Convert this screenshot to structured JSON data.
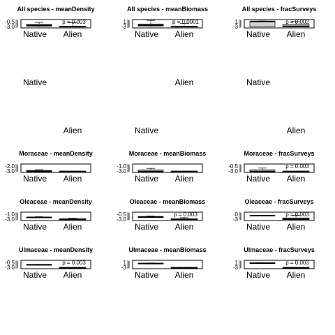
{
  "chart_data": [
    {
      "type": "box",
      "title": "All species - meanDensity",
      "categories": [
        "Native",
        "Alien"
      ],
      "yticks": [
        "-0.5",
        "-3.0"
      ],
      "p_value": "p = 0.003",
      "boxes": [
        {
          "q1": -2.4,
          "median": -1.7,
          "q3": -0.9,
          "whisker_low": -3.0,
          "whisker_high": 0.8
        },
        {
          "q1": -2.9,
          "median": -2.7,
          "q3": -2.3,
          "whisker_low": -3.0,
          "whisker_high": 0.5
        }
      ]
    },
    {
      "type": "box",
      "title": "All species - meanBiomass",
      "categories": [
        "Native",
        "Alien"
      ],
      "yticks": [
        "1",
        "-3"
      ],
      "p_value": "p = 0.0001",
      "boxes": [
        {
          "q1": -2.2,
          "median": -1.5,
          "q3": -0.5,
          "whisker_low": -3.0,
          "whisker_high": 2.5
        },
        {
          "q1": -2.9,
          "median": -2.7,
          "q3": -2.4,
          "whisker_low": -3.0,
          "whisker_high": 0.0
        }
      ]
    },
    {
      "type": "box",
      "title": "All species - fracSurveys",
      "categories": [
        "Native",
        "Alien"
      ],
      "yticks": [
        "1",
        "-3"
      ],
      "p_value": "p = 0.002",
      "boxes": [
        {
          "q1": -3.0,
          "median": 1.6,
          "q3": 1.8,
          "whisker_low": -3.0,
          "whisker_high": 2.0
        },
        {
          "q1": -2.9,
          "median": -2.5,
          "q3": -1.0,
          "whisker_low": -3.0,
          "whisker_high": 1.5
        }
      ]
    },
    {
      "type": "empty",
      "categories": [
        "Native",
        ""
      ],
      "yticks": [],
      "p_value": ""
    },
    {
      "type": "empty",
      "categories": [
        "",
        "Alien"
      ],
      "yticks": [],
      "p_value": ""
    },
    {
      "type": "empty",
      "categories": [
        "Native",
        ""
      ],
      "yticks": [],
      "p_value": ""
    },
    {
      "type": "empty",
      "categories": [
        "",
        "Alien"
      ],
      "yticks": [],
      "p_value": ""
    },
    {
      "type": "empty",
      "categories": [
        "Native",
        ""
      ],
      "yticks": [],
      "p_value": ""
    },
    {
      "type": "empty",
      "categories": [
        "",
        "Alien"
      ],
      "yticks": [],
      "p_value": ""
    },
    {
      "type": "box",
      "title": "Moraceae - meanDensity",
      "categories": [
        "Native",
        "Alien"
      ],
      "yticks": [
        "-2.0",
        "-3.0"
      ],
      "p_value": "",
      "boxes": [
        {
          "q1": -3.0,
          "median": -3.0,
          "q3": -2.1,
          "whisker_low": -3.0,
          "whisker_high": -1.5
        },
        {
          "q1": -3.0,
          "median": -3.0,
          "q3": -2.95,
          "whisker_low": -3.0,
          "whisker_high": -2.95
        }
      ]
    },
    {
      "type": "box",
      "title": "Moraceae - meanBiomass",
      "categories": [
        "Native",
        "Alien"
      ],
      "yticks": [
        "-1.0",
        "-3.0"
      ],
      "p_value": "",
      "boxes": [
        {
          "q1": -3.0,
          "median": -3.0,
          "q3": -1.7,
          "whisker_low": -3.0,
          "whisker_high": -0.4
        },
        {
          "q1": -3.0,
          "median": -3.0,
          "q3": -2.95,
          "whisker_low": -3.0,
          "whisker_high": -2.95
        }
      ]
    },
    {
      "type": "box",
      "title": "Moraceae - fracSurveys",
      "categories": [
        "Native",
        "Alien"
      ],
      "yticks": [
        "-0.5",
        "-3.0"
      ],
      "p_value": "p = 0.003",
      "boxes": [
        {
          "q1": -3.0,
          "median": -3.0,
          "q3": -1.6,
          "whisker_low": -3.0,
          "whisker_high": -0.2
        },
        {
          "q1": -3.0,
          "median": -3.0,
          "q3": -2.95,
          "whisker_low": -3.0,
          "whisker_high": -2.95
        }
      ]
    },
    {
      "type": "box",
      "title": "Oleaceae - meanDensity",
      "categories": [
        "Native",
        "Alien"
      ],
      "yticks": [
        "-1.0",
        "-3.0"
      ],
      "p_value": "",
      "boxes": [
        {
          "q1": -1.5,
          "median": -1.2,
          "q3": -0.9,
          "whisker_low": -1.8,
          "whisker_high": -0.6
        },
        {
          "q1": -3.0,
          "median": -2.7,
          "q3": -2.5,
          "whisker_low": -3.0,
          "whisker_high": -1.8
        }
      ]
    },
    {
      "type": "box",
      "title": "Oleaceae - meanBiomass",
      "categories": [
        "Native",
        "Alien"
      ],
      "yticks": [
        "-0.5",
        "-3.0"
      ],
      "p_value": "p = 0.003",
      "boxes": [
        {
          "q1": -1.3,
          "median": -0.8,
          "q3": -0.4,
          "whisker_low": -1.8,
          "whisker_high": 0.0
        },
        {
          "q1": -3.0,
          "median": -2.7,
          "q3": -2.4,
          "whisker_low": -3.0,
          "whisker_high": -1.4
        }
      ]
    },
    {
      "type": "box",
      "title": "Oleaceae - fracSurveys",
      "categories": [
        "Native",
        "Alien"
      ],
      "yticks": [
        "0",
        "-3"
      ],
      "p_value": "p = 0.003",
      "boxes": [
        {
          "q1": 0.1,
          "median": 0.3,
          "q3": 0.5,
          "whisker_low": 0.0,
          "whisker_high": 0.6
        },
        {
          "q1": -2.9,
          "median": -2.6,
          "q3": -1.6,
          "whisker_low": -3.0,
          "whisker_high": 0.5
        }
      ]
    },
    {
      "type": "box",
      "title": "Ulmaceae - meanDensity",
      "categories": [
        "Native",
        "Alien"
      ],
      "yticks": [
        "-0.5",
        "-3.0"
      ],
      "p_value": "p = 0.003",
      "boxes": [
        {
          "q1": -0.7,
          "median": -0.5,
          "q3": -0.3,
          "whisker_low": -0.8,
          "whisker_high": -0.2
        },
        {
          "q1": -3.0,
          "median": -3.0,
          "q3": -2.95,
          "whisker_low": -3.0,
          "whisker_high": -2.95
        }
      ]
    },
    {
      "type": "box",
      "title": "Ulmaceae - meanBiomass",
      "categories": [
        "Native",
        "Alien"
      ],
      "yticks": [
        "1",
        "-3"
      ],
      "p_value": "",
      "boxes": [
        {
          "q1": 0.2,
          "median": 0.5,
          "q3": 0.8,
          "whisker_low": 0.0,
          "whisker_high": 1.0
        },
        {
          "q1": -3.0,
          "median": -3.0,
          "q3": -2.95,
          "whisker_low": -3.0,
          "whisker_high": -2.95
        }
      ]
    },
    {
      "type": "box",
      "title": "Ulmaceae - fracSurveys",
      "categories": [
        "Native",
        "Alien"
      ],
      "yticks": [
        "1",
        "-3"
      ],
      "p_value": "p = 0.003",
      "boxes": [
        {
          "q1": 0.6,
          "median": 0.85,
          "q3": 1.1,
          "whisker_low": 0.3,
          "whisker_high": 1.3
        },
        {
          "q1": -3.0,
          "median": -3.0,
          "q3": -2.95,
          "whisker_low": -3.0,
          "whisker_high": -2.95
        }
      ]
    }
  ]
}
